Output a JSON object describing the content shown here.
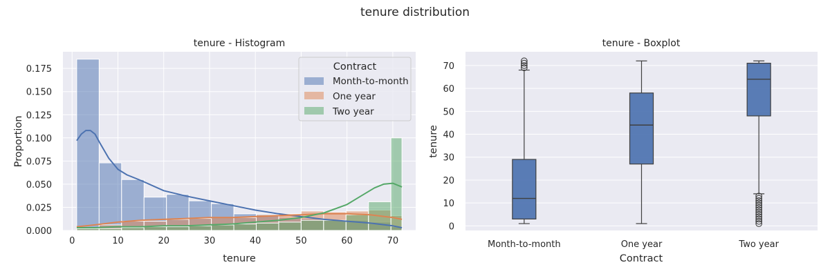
{
  "suptitle": "tenure distribution",
  "chart_data": [
    {
      "type": "histogram",
      "title": "tenure - Histogram",
      "xlabel": "tenure",
      "ylabel": "Proportion",
      "xlim": [
        -2,
        75
      ],
      "ylim": [
        0,
        0.193
      ],
      "xticks": [
        0,
        10,
        20,
        30,
        40,
        50,
        60,
        70
      ],
      "yticks": [
        0.0,
        0.025,
        0.05,
        0.075,
        0.1,
        0.125,
        0.15,
        0.175
      ],
      "ytick_labels": [
        "0.000",
        "0.025",
        "0.050",
        "0.075",
        "0.100",
        "0.125",
        "0.150",
        "0.175"
      ],
      "bin_edges": [
        1.0,
        5.9,
        10.8,
        15.7,
        20.6,
        25.5,
        30.4,
        35.3,
        40.2,
        45.1,
        50.0,
        54.9,
        59.8,
        64.7,
        69.6,
        72.0
      ],
      "legend": {
        "title": "Contract",
        "position": "top-right"
      },
      "colors": {
        "month": "#4c72b0",
        "one": "#dd8452",
        "two": "#55a868"
      },
      "series": [
        {
          "name": "Month-to-month",
          "values": [
            0.185,
            0.073,
            0.055,
            0.036,
            0.039,
            0.032,
            0.029,
            0.018,
            0.018,
            0.014,
            0.013,
            0.011,
            0.011,
            0.009,
            0.004
          ],
          "kde_x": [
            1,
            2,
            3,
            4,
            5,
            6,
            8,
            10,
            12,
            15,
            20,
            25,
            30,
            35,
            40,
            45,
            50,
            55,
            60,
            65,
            70,
            72
          ],
          "kde_y": [
            0.097,
            0.104,
            0.108,
            0.108,
            0.104,
            0.095,
            0.078,
            0.066,
            0.06,
            0.054,
            0.043,
            0.037,
            0.032,
            0.027,
            0.022,
            0.018,
            0.015,
            0.012,
            0.01,
            0.008,
            0.005,
            0.003
          ]
        },
        {
          "name": "One year",
          "values": [
            0.003,
            0.006,
            0.01,
            0.01,
            0.012,
            0.013,
            0.014,
            0.014,
            0.017,
            0.018,
            0.021,
            0.02,
            0.021,
            0.022,
            0.016
          ],
          "kde_x": [
            1,
            5,
            10,
            15,
            20,
            25,
            30,
            35,
            40,
            45,
            50,
            55,
            60,
            65,
            70,
            72
          ],
          "kde_y": [
            0.004,
            0.006,
            0.009,
            0.011,
            0.012,
            0.013,
            0.014,
            0.014,
            0.015,
            0.016,
            0.017,
            0.018,
            0.018,
            0.017,
            0.014,
            0.012
          ]
        },
        {
          "name": "Two year",
          "values": [
            0.002,
            0.002,
            0.003,
            0.004,
            0.004,
            0.005,
            0.006,
            0.007,
            0.008,
            0.009,
            0.011,
            0.011,
            0.017,
            0.031,
            0.1
          ],
          "kde_x": [
            1,
            5,
            10,
            15,
            20,
            25,
            30,
            35,
            40,
            45,
            50,
            55,
            60,
            63,
            66,
            68,
            70,
            72
          ],
          "kde_y": [
            0.003,
            0.003,
            0.004,
            0.004,
            0.005,
            0.005,
            0.006,
            0.007,
            0.009,
            0.011,
            0.014,
            0.019,
            0.028,
            0.037,
            0.046,
            0.05,
            0.051,
            0.047
          ]
        }
      ]
    },
    {
      "type": "boxplot",
      "title": "tenure - Boxplot",
      "xlabel": "Contract",
      "ylabel": "tenure",
      "ylim": [
        -2,
        76
      ],
      "yticks": [
        0,
        10,
        20,
        30,
        40,
        50,
        60,
        70
      ],
      "color": "#4c72b0",
      "categories": [
        "Month-to-month",
        "One year",
        "Two year"
      ],
      "boxes": [
        {
          "min": 1,
          "q1": 3,
          "median": 12,
          "q3": 29,
          "max": 68,
          "outliers": [
            69,
            70,
            71,
            72
          ]
        },
        {
          "min": 1,
          "q1": 27,
          "median": 44,
          "q3": 58,
          "max": 72,
          "outliers": []
        },
        {
          "min": 14,
          "q1": 48,
          "median": 64,
          "q3": 71,
          "max": 72,
          "outliers": [
            1,
            2,
            3,
            4,
            5,
            6,
            7,
            8,
            9,
            10,
            11,
            12,
            13
          ]
        }
      ]
    }
  ]
}
